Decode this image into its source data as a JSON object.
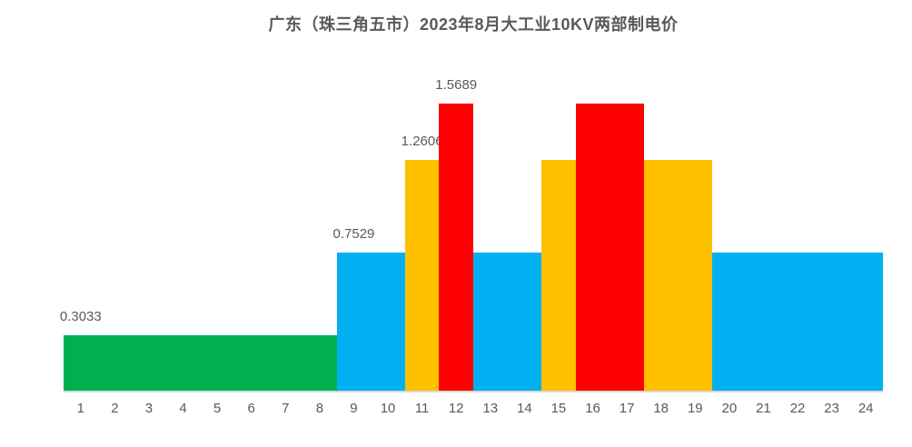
{
  "chart_data": {
    "type": "bar",
    "title": "广东（珠三角五市）2023年8月大工业10KV两部制电价",
    "xlabel": "",
    "ylabel": "",
    "legend": "none",
    "grid": false,
    "categories": [
      1,
      2,
      3,
      4,
      5,
      6,
      7,
      8,
      9,
      10,
      11,
      12,
      13,
      14,
      15,
      16,
      17,
      18,
      19,
      20,
      21,
      22,
      23,
      24
    ],
    "values": [
      0.3033,
      0.3033,
      0.3033,
      0.3033,
      0.3033,
      0.3033,
      0.3033,
      0.3033,
      0.7529,
      0.7529,
      1.2606,
      1.5689,
      0.7529,
      0.7529,
      1.2606,
      1.5689,
      1.5689,
      1.2606,
      1.2606,
      0.7529,
      0.7529,
      0.7529,
      0.7529,
      0.7529
    ],
    "bar_color_keys": [
      "green",
      "green",
      "green",
      "green",
      "green",
      "green",
      "green",
      "green",
      "blue",
      "blue",
      "yellow",
      "red",
      "blue",
      "blue",
      "yellow",
      "red",
      "red",
      "yellow",
      "yellow",
      "blue",
      "blue",
      "blue",
      "blue",
      "blue"
    ],
    "palette": {
      "green": "#00B050",
      "blue": "#00B0F0",
      "yellow": "#FFC000",
      "red": "#FF0000"
    },
    "data_labels": [
      {
        "hour": 1,
        "text": "0.3033"
      },
      {
        "hour": 9,
        "text": "0.7529"
      },
      {
        "hour": 11,
        "text": "1.2606"
      },
      {
        "hour": 12,
        "text": "1.5689"
      }
    ],
    "axis_line_color": "#D9D9D9",
    "text_color": "#595959"
  }
}
